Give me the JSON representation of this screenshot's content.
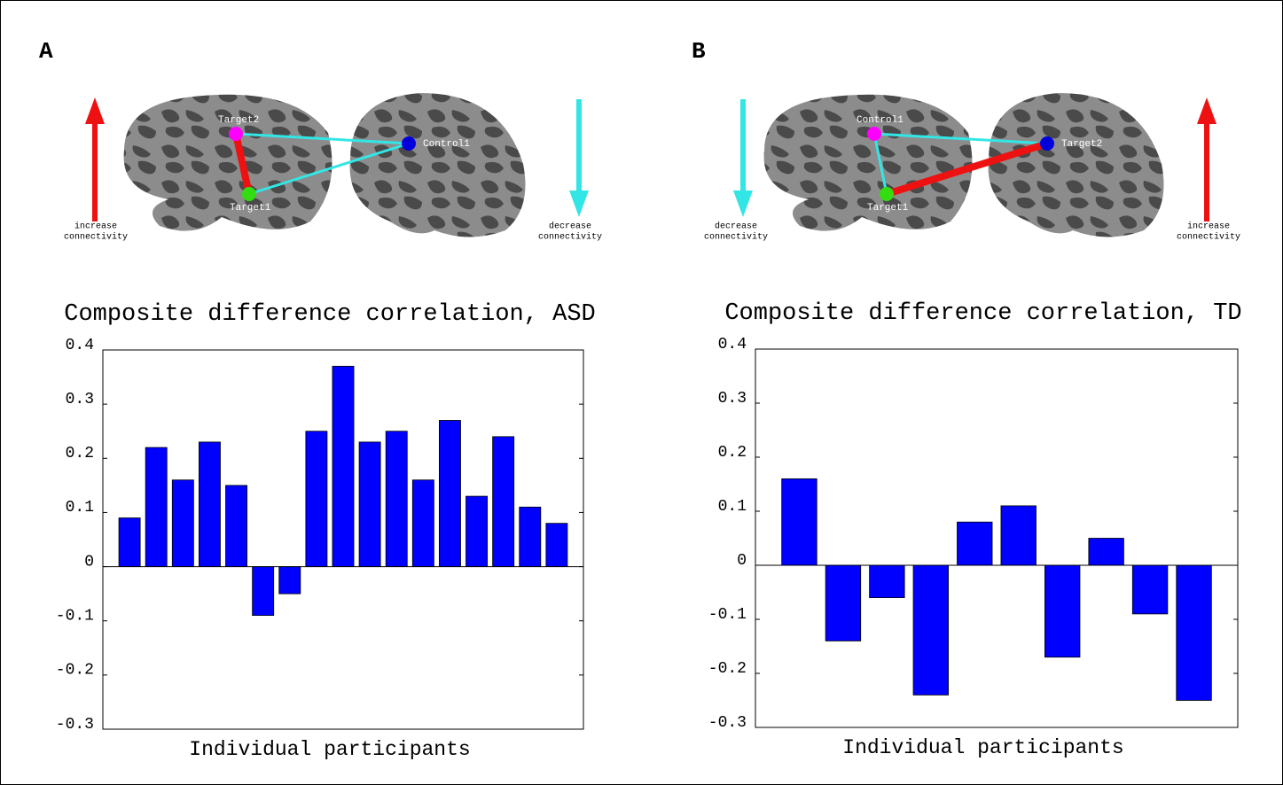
{
  "panels": [
    {
      "label": "A",
      "nodes": [
        {
          "label": "Target2"
        },
        {
          "label": "Control1"
        },
        {
          "label": "Target1"
        }
      ],
      "arrows": [
        {
          "label": [
            "increase",
            "connectivity"
          ]
        },
        {
          "label": [
            "decrease",
            "connectivity"
          ]
        }
      ]
    },
    {
      "label": "B",
      "nodes": [
        {
          "label": "Control1"
        },
        {
          "label": "Target2"
        },
        {
          "label": "Target1"
        }
      ],
      "arrows": [
        {
          "label": [
            "decrease",
            "connectivity"
          ]
        },
        {
          "label": [
            "increase",
            "connectivity"
          ]
        }
      ]
    }
  ],
  "chart_data": [
    {
      "type": "bar",
      "title": "Composite difference correlation, ASD",
      "x_label": "Individual participants",
      "x": [
        1,
        2,
        3,
        4,
        5,
        6,
        7,
        8,
        9,
        10,
        11,
        12,
        13,
        14,
        15,
        16,
        17
      ],
      "xlim": [
        0,
        18
      ],
      "values": [
        0.09,
        0.22,
        0.16,
        0.23,
        0.15,
        -0.09,
        -0.05,
        0.25,
        0.37,
        0.23,
        0.25,
        0.16,
        0.27,
        0.13,
        0.24,
        0.11,
        0.08
      ],
      "color": "#0000ff",
      "ylim": [
        -0.3,
        0.4
      ],
      "yticks": [
        -0.3,
        -0.2,
        -0.1,
        0,
        0.1,
        0.2,
        0.3,
        0.4
      ]
    },
    {
      "type": "bar",
      "title": "Composite difference correlation, TD",
      "x_label": "Individual participants",
      "x": [
        1,
        2,
        3,
        4,
        5,
        6,
        7,
        8,
        9,
        10
      ],
      "xlim": [
        0,
        11
      ],
      "values": [
        0.16,
        -0.14,
        -0.06,
        -0.24,
        0.08,
        0.11,
        -0.17,
        0.05,
        -0.09,
        -0.25
      ],
      "color": "#0000ff",
      "ylim": [
        -0.3,
        0.4
      ],
      "yticks": [
        -0.3,
        -0.2,
        -0.1,
        0,
        0.1,
        0.2,
        0.3,
        0.4
      ]
    }
  ]
}
